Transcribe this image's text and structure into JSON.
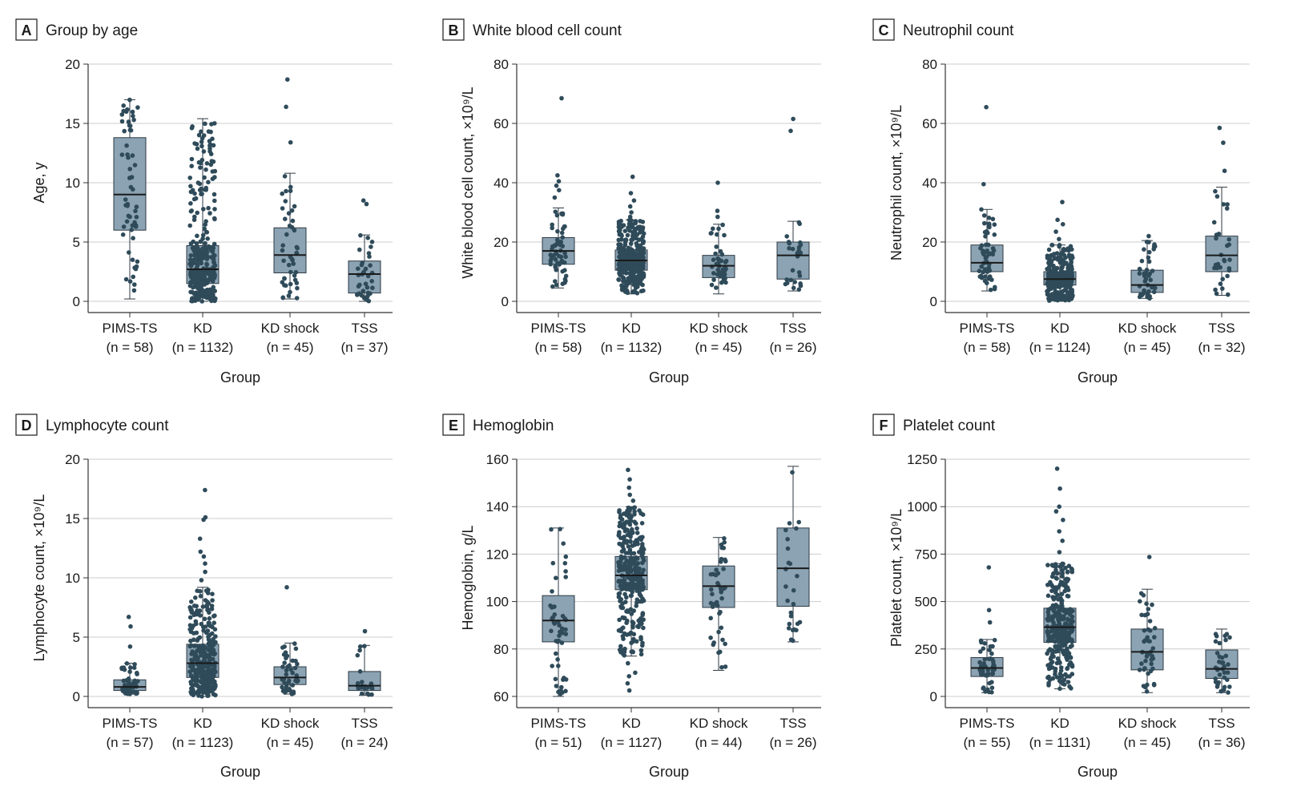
{
  "colors": {
    "box_fill": "#8ba3b3",
    "box_stroke": "#2e3a44",
    "dot": "#2f4b5a",
    "grid": "#cccccc",
    "axis": "#333333"
  },
  "chart_data": [
    {
      "type": "box",
      "letter": "A",
      "title": "Group by age",
      "ylabel": "Age, y",
      "xlabel": "Group",
      "ylim": [
        0,
        20
      ],
      "yticks": [
        0,
        5,
        10,
        15,
        20
      ],
      "categories": [
        "PIMS-TS",
        "KD",
        "KD shock",
        "TSS"
      ],
      "n_labels": [
        "(n = 58)",
        "(n = 1132)",
        "(n = 45)",
        "(n = 37)"
      ],
      "boxes": [
        {
          "min": 0.2,
          "q1": 6.0,
          "median": 9.0,
          "q3": 13.8,
          "max": 17.0
        },
        {
          "min": 0.0,
          "q1": 1.5,
          "median": 2.7,
          "q3": 4.7,
          "max": 15.4
        },
        {
          "min": 0.2,
          "q1": 2.4,
          "median": 3.9,
          "q3": 6.2,
          "max": 10.8
        },
        {
          "min": 0.0,
          "q1": 0.7,
          "median": 2.3,
          "q3": 3.4,
          "max": 5.6
        }
      ],
      "outliers": [
        [],
        [],
        [
          13.4,
          16.4,
          18.7
        ],
        [
          8.2,
          8.5
        ]
      ]
    },
    {
      "type": "box",
      "letter": "B",
      "title": "White blood cell count",
      "ylabel": "White blood cell count, ×10⁹/L",
      "xlabel": "Group",
      "ylim": [
        0,
        80
      ],
      "yticks": [
        0,
        20,
        40,
        60,
        80
      ],
      "categories": [
        "PIMS-TS",
        "KD",
        "KD shock",
        "TSS"
      ],
      "n_labels": [
        "(n = 58)",
        "(n = 1132)",
        "(n = 45)",
        "(n = 26)"
      ],
      "boxes": [
        {
          "min": 4.5,
          "q1": 12.5,
          "median": 17.0,
          "q3": 21.5,
          "max": 31.5
        },
        {
          "min": 2.5,
          "q1": 10.5,
          "median": 13.8,
          "q3": 17.3,
          "max": 27.5
        },
        {
          "min": 2.5,
          "q1": 8.0,
          "median": 12.0,
          "q3": 15.5,
          "max": 26.0
        },
        {
          "min": 3.5,
          "q1": 7.5,
          "median": 15.5,
          "q3": 20.0,
          "max": 27.0
        }
      ],
      "outliers": [
        [
          35.0,
          37.5,
          39.0,
          40.5,
          42.5,
          68.5
        ],
        [
          28.5,
          30.0,
          32.0,
          34.0,
          36.5,
          42.0
        ],
        [
          28.5,
          30.5,
          40.0
        ],
        [
          57.5,
          61.5
        ]
      ]
    },
    {
      "type": "box",
      "letter": "C",
      "title": "Neutrophil count",
      "ylabel": "Neutrophil count, ×10⁹/L",
      "xlabel": "Group",
      "ylim": [
        0,
        80
      ],
      "yticks": [
        0,
        20,
        40,
        60,
        80
      ],
      "categories": [
        "PIMS-TS",
        "KD",
        "KD shock",
        "TSS"
      ],
      "n_labels": [
        "(n = 58)",
        "(n = 1124)",
        "(n = 45)",
        "(n = 32)"
      ],
      "boxes": [
        {
          "min": 3.5,
          "q1": 10.0,
          "median": 13.0,
          "q3": 19.0,
          "max": 31.0
        },
        {
          "min": 0.0,
          "q1": 5.5,
          "median": 7.5,
          "q3": 10.0,
          "max": 19.0
        },
        {
          "min": 1.0,
          "q1": 3.0,
          "median": 5.5,
          "q3": 10.5,
          "max": 20.5
        },
        {
          "min": 2.0,
          "q1": 10.0,
          "median": 15.5,
          "q3": 22.0,
          "max": 38.5
        }
      ],
      "outliers": [
        [
          39.5,
          65.5
        ],
        [
          21.0,
          23.5,
          26.0,
          27.5,
          33.5
        ],
        [
          22.0
        ],
        [
          44.0,
          53.5,
          58.5
        ]
      ]
    },
    {
      "type": "box",
      "letter": "D",
      "title": "Lymphocyte count",
      "ylabel": "Lymphocyte count, ×10⁹/L",
      "xlabel": "Group",
      "ylim": [
        0,
        20
      ],
      "yticks": [
        0,
        5,
        10,
        15,
        20
      ],
      "categories": [
        "PIMS-TS",
        "KD",
        "KD shock",
        "TSS"
      ],
      "n_labels": [
        "(n = 57)",
        "(n = 1123)",
        "(n = 45)",
        "(n = 24)"
      ],
      "boxes": [
        {
          "min": 0.2,
          "q1": 0.5,
          "median": 0.8,
          "q3": 1.4,
          "max": 2.8
        },
        {
          "min": 0.0,
          "q1": 1.6,
          "median": 2.8,
          "q3": 4.4,
          "max": 9.2
        },
        {
          "min": 0.2,
          "q1": 1.0,
          "median": 1.6,
          "q3": 2.5,
          "max": 4.5
        },
        {
          "min": 0.1,
          "q1": 0.5,
          "median": 0.9,
          "q3": 2.1,
          "max": 4.3
        }
      ],
      "outliers": [
        [
          4.2,
          5.9,
          6.7
        ],
        [
          9.8,
          10.5,
          11.2,
          11.8,
          12.2,
          13.3,
          14.9,
          15.1,
          17.4
        ],
        [
          9.2
        ],
        [
          5.5
        ]
      ]
    },
    {
      "type": "box",
      "letter": "E",
      "title": "Hemoglobin",
      "ylabel": "Hemoglobin, g/L",
      "xlabel": "Group",
      "ylim": [
        60,
        160
      ],
      "yticks": [
        60,
        80,
        100,
        120,
        140,
        160
      ],
      "categories": [
        "PIMS-TS",
        "KD",
        "KD shock",
        "TSS"
      ],
      "n_labels": [
        "(n = 51)",
        "(n = 1127)",
        "(n = 44)",
        "(n = 26)"
      ],
      "boxes": [
        {
          "min": 60.0,
          "q1": 83.0,
          "median": 92.0,
          "q3": 102.5,
          "max": 131.0
        },
        {
          "min": 77.0,
          "q1": 105.0,
          "median": 111.0,
          "q3": 119.0,
          "max": 140.0
        },
        {
          "min": 71.0,
          "q1": 97.5,
          "median": 106.5,
          "q3": 115.0,
          "max": 127.0
        },
        {
          "min": 83.0,
          "q1": 98.0,
          "median": 114.0,
          "q3": 131.0,
          "max": 157.0
        }
      ],
      "outliers": [
        [],
        [
          62.5,
          65.5,
          68.5,
          70.0,
          74.0,
          142.5,
          145.0,
          148.0,
          151.5,
          155.5
        ],
        [],
        []
      ]
    },
    {
      "type": "box",
      "letter": "F",
      "title": "Platelet count",
      "ylabel": "Platelet count, ×10⁹/L",
      "xlabel": "Group",
      "ylim": [
        0,
        1250
      ],
      "yticks": [
        0,
        250,
        500,
        750,
        1000,
        1250
      ],
      "categories": [
        "PIMS-TS",
        "KD",
        "KD shock",
        "TSS"
      ],
      "n_labels": [
        "(n = 55)",
        "(n = 1131)",
        "(n = 45)",
        "(n = 36)"
      ],
      "boxes": [
        {
          "min": 20.0,
          "q1": 105.0,
          "median": 150.0,
          "q3": 205.0,
          "max": 300.0
        },
        {
          "min": 40.0,
          "q1": 285.0,
          "median": 365.0,
          "q3": 465.0,
          "max": 700.0
        },
        {
          "min": 20.0,
          "q1": 140.0,
          "median": 235.0,
          "q3": 355.0,
          "max": 565.0
        },
        {
          "min": 20.0,
          "q1": 95.0,
          "median": 145.0,
          "q3": 245.0,
          "max": 355.0
        }
      ],
      "outliers": [
        [
          390.0,
          455.0,
          680.0
        ],
        [
          760.0,
          820.0,
          870.0,
          930.0,
          975.0,
          1000.0,
          1095.0,
          1200.0
        ],
        [
          735.0
        ],
        []
      ]
    }
  ]
}
